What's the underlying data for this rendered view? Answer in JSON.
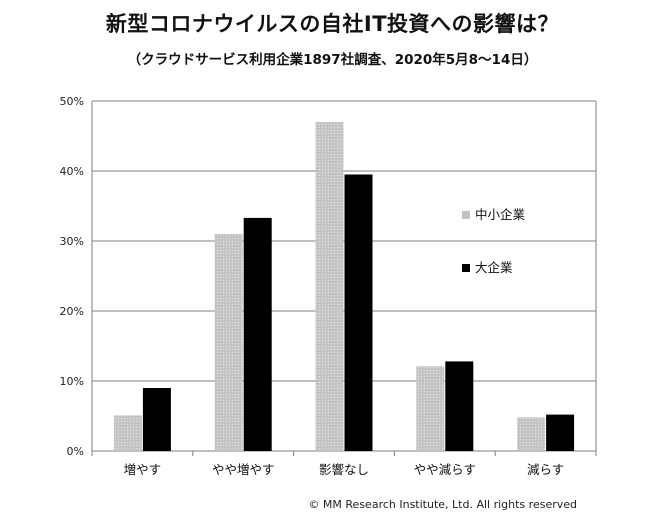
{
  "header": {
    "title": "新型コロナウイルスの自社IT投資への影響は？",
    "subtitle": "（クラウドサービス利用企業1897社調査、2020年5月8～14日）"
  },
  "footer": {
    "copyright": "© MM Research Institute, Ltd. All rights reserved"
  },
  "colors": {
    "series_small": "#c2c2c2",
    "series_large": "#000000",
    "grid": "#808080"
  },
  "chart_data": {
    "type": "bar",
    "title": "新型コロナウイルスの自社IT投資への影響は？",
    "subtitle": "（クラウドサービス利用企業1897社調査、2020年5月8～14日）",
    "categories": [
      "増やす",
      "やや増やす",
      "影響なし",
      "やや減らす",
      "減らす"
    ],
    "series": [
      {
        "name": "中小企業",
        "values": [
          5.1,
          31.0,
          47.0,
          12.1,
          4.8
        ]
      },
      {
        "name": "大企業",
        "values": [
          9.0,
          33.3,
          39.5,
          12.8,
          5.2
        ]
      }
    ],
    "ylim": [
      0,
      50
    ],
    "yticks": [
      0,
      10,
      20,
      30,
      40,
      50
    ],
    "ytick_labels": [
      "0%",
      "10%",
      "20%",
      "30%",
      "40%",
      "50%"
    ],
    "xlabel": "",
    "ylabel": "",
    "grid": true,
    "legend": "right"
  }
}
